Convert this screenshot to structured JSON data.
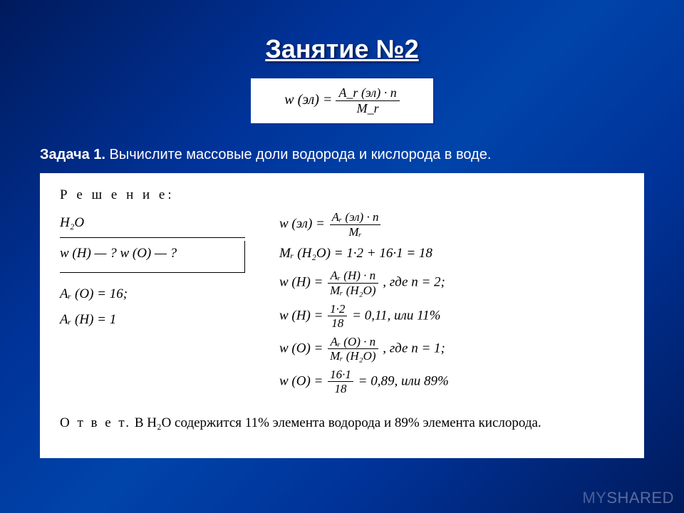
{
  "title": "Занятие №2",
  "top_formula": {
    "lhs": "w (эл) =",
    "num": "A_r (эл) · n",
    "den": "M_r"
  },
  "problem": {
    "label": "Задача 1.",
    "text": "Вычислите массовые доли водорода и кислорода в воде."
  },
  "solution": {
    "header": "Р е ш е н и е:",
    "given_compound": "H₂O",
    "find_line": "w (H) — ? w (O) — ?",
    "ar_O": "Aᵣ (O) = 16;",
    "ar_H": "Aᵣ (H) = 1",
    "lines": {
      "l1_lhs": "w (эл) =",
      "l1_num": "Aᵣ (эл) · n",
      "l1_den": "Mᵣ",
      "l2": "Mᵣ (H₂O) = 1·2 + 16·1 = 18",
      "l3_lhs": "w (H) =",
      "l3_num": "Aᵣ (H) · n",
      "l3_den": "Mᵣ (H₂O)",
      "l3_tail": ", где n = 2;",
      "l4_lhs": "w (H) =",
      "l4_num": "1·2",
      "l4_den": "18",
      "l4_tail": " = 0,11, или 11%",
      "l5_lhs": "w (O) =",
      "l5_num": "Aᵣ (O) · n",
      "l5_den": "Mᵣ (H₂O)",
      "l5_tail": ", где n = 1;",
      "l6_lhs": "w (O) =",
      "l6_num": "16·1",
      "l6_den": "18",
      "l6_tail": " = 0,89, или 89%"
    },
    "answer_label": "О т в е т.",
    "answer_text": "В H₂O содержится 11% элемента водорода и 89% элемента кислорода."
  },
  "watermark": "MYSHARED"
}
